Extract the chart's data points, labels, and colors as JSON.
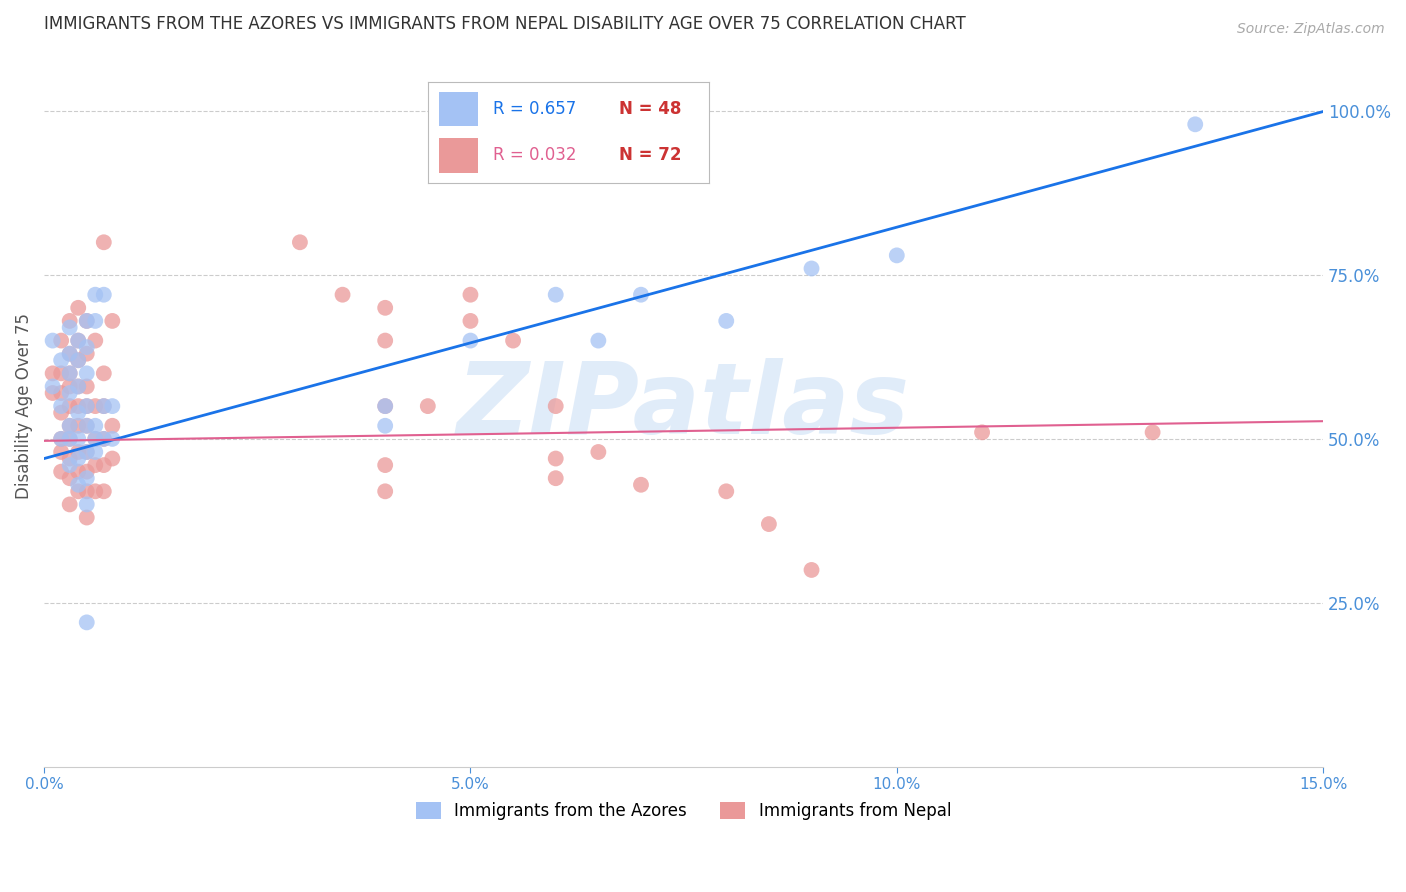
{
  "title": "IMMIGRANTS FROM THE AZORES VS IMMIGRANTS FROM NEPAL DISABILITY AGE OVER 75 CORRELATION CHART",
  "source": "Source: ZipAtlas.com",
  "ylabel": "Disability Age Over 75",
  "ylabel_right_values": [
    1.0,
    0.75,
    0.5,
    0.25
  ],
  "x_min": 0.0,
  "x_max": 0.15,
  "y_min": 0.0,
  "y_max": 1.1,
  "legend_blue_r": "R = 0.657",
  "legend_blue_n": "N = 48",
  "legend_pink_r": "R = 0.032",
  "legend_pink_n": "N = 72",
  "blue_color": "#a4c2f4",
  "pink_color": "#ea9999",
  "blue_line_color": "#1a73e8",
  "pink_line_color": "#e06090",
  "watermark": "ZIPatlas",
  "blue_points": [
    [
      0.001,
      0.58
    ],
    [
      0.001,
      0.65
    ],
    [
      0.002,
      0.62
    ],
    [
      0.002,
      0.55
    ],
    [
      0.002,
      0.5
    ],
    [
      0.003,
      0.67
    ],
    [
      0.003,
      0.63
    ],
    [
      0.003,
      0.6
    ],
    [
      0.003,
      0.57
    ],
    [
      0.003,
      0.52
    ],
    [
      0.003,
      0.5
    ],
    [
      0.003,
      0.46
    ],
    [
      0.004,
      0.65
    ],
    [
      0.004,
      0.62
    ],
    [
      0.004,
      0.58
    ],
    [
      0.004,
      0.54
    ],
    [
      0.004,
      0.5
    ],
    [
      0.004,
      0.47
    ],
    [
      0.004,
      0.43
    ],
    [
      0.005,
      0.68
    ],
    [
      0.005,
      0.64
    ],
    [
      0.005,
      0.6
    ],
    [
      0.005,
      0.55
    ],
    [
      0.005,
      0.52
    ],
    [
      0.005,
      0.48
    ],
    [
      0.005,
      0.44
    ],
    [
      0.005,
      0.4
    ],
    [
      0.005,
      0.22
    ],
    [
      0.006,
      0.72
    ],
    [
      0.006,
      0.68
    ],
    [
      0.006,
      0.52
    ],
    [
      0.006,
      0.5
    ],
    [
      0.006,
      0.48
    ],
    [
      0.007,
      0.72
    ],
    [
      0.007,
      0.55
    ],
    [
      0.007,
      0.5
    ],
    [
      0.008,
      0.55
    ],
    [
      0.008,
      0.5
    ],
    [
      0.04,
      0.55
    ],
    [
      0.04,
      0.52
    ],
    [
      0.05,
      0.65
    ],
    [
      0.06,
      0.72
    ],
    [
      0.065,
      0.65
    ],
    [
      0.07,
      0.72
    ],
    [
      0.08,
      0.68
    ],
    [
      0.09,
      0.76
    ],
    [
      0.1,
      0.78
    ],
    [
      0.135,
      0.98
    ]
  ],
  "pink_points": [
    [
      0.001,
      0.6
    ],
    [
      0.001,
      0.57
    ],
    [
      0.002,
      0.65
    ],
    [
      0.002,
      0.6
    ],
    [
      0.002,
      0.57
    ],
    [
      0.002,
      0.54
    ],
    [
      0.002,
      0.5
    ],
    [
      0.002,
      0.48
    ],
    [
      0.002,
      0.45
    ],
    [
      0.003,
      0.68
    ],
    [
      0.003,
      0.63
    ],
    [
      0.003,
      0.6
    ],
    [
      0.003,
      0.58
    ],
    [
      0.003,
      0.55
    ],
    [
      0.003,
      0.52
    ],
    [
      0.003,
      0.5
    ],
    [
      0.003,
      0.47
    ],
    [
      0.003,
      0.44
    ],
    [
      0.003,
      0.4
    ],
    [
      0.004,
      0.7
    ],
    [
      0.004,
      0.65
    ],
    [
      0.004,
      0.62
    ],
    [
      0.004,
      0.58
    ],
    [
      0.004,
      0.55
    ],
    [
      0.004,
      0.52
    ],
    [
      0.004,
      0.48
    ],
    [
      0.004,
      0.45
    ],
    [
      0.004,
      0.42
    ],
    [
      0.005,
      0.68
    ],
    [
      0.005,
      0.63
    ],
    [
      0.005,
      0.58
    ],
    [
      0.005,
      0.55
    ],
    [
      0.005,
      0.52
    ],
    [
      0.005,
      0.48
    ],
    [
      0.005,
      0.45
    ],
    [
      0.005,
      0.42
    ],
    [
      0.005,
      0.38
    ],
    [
      0.006,
      0.65
    ],
    [
      0.006,
      0.55
    ],
    [
      0.006,
      0.5
    ],
    [
      0.006,
      0.46
    ],
    [
      0.006,
      0.42
    ],
    [
      0.007,
      0.8
    ],
    [
      0.007,
      0.6
    ],
    [
      0.007,
      0.55
    ],
    [
      0.007,
      0.5
    ],
    [
      0.007,
      0.46
    ],
    [
      0.007,
      0.42
    ],
    [
      0.008,
      0.68
    ],
    [
      0.008,
      0.52
    ],
    [
      0.008,
      0.47
    ],
    [
      0.03,
      0.8
    ],
    [
      0.035,
      0.72
    ],
    [
      0.04,
      0.7
    ],
    [
      0.04,
      0.65
    ],
    [
      0.04,
      0.55
    ],
    [
      0.04,
      0.46
    ],
    [
      0.04,
      0.42
    ],
    [
      0.045,
      0.55
    ],
    [
      0.05,
      0.72
    ],
    [
      0.05,
      0.68
    ],
    [
      0.055,
      0.65
    ],
    [
      0.06,
      0.55
    ],
    [
      0.06,
      0.47
    ],
    [
      0.06,
      0.44
    ],
    [
      0.065,
      0.48
    ],
    [
      0.07,
      0.43
    ],
    [
      0.08,
      0.42
    ],
    [
      0.085,
      0.37
    ],
    [
      0.09,
      0.3
    ],
    [
      0.11,
      0.51
    ],
    [
      0.13,
      0.51
    ]
  ],
  "blue_regression": {
    "slope": 3.53,
    "intercept": 0.47
  },
  "pink_regression": {
    "slope": 0.2,
    "intercept": 0.497
  },
  "background_color": "#ffffff",
  "grid_color": "#cccccc",
  "title_color": "#333333",
  "axis_label_color": "#4a90d9",
  "tick_color": "#4a90d9"
}
